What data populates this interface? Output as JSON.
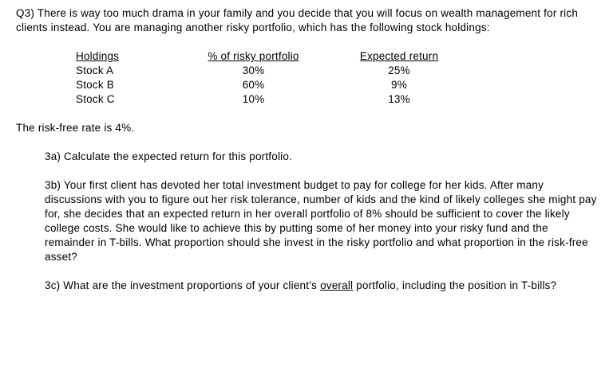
{
  "intro": "Q3) There is way too much drama in your family and you decide that you will focus on wealth management for rich clients instead. You are managing another risky portfolio, which has the following stock holdings:",
  "table": {
    "headers": [
      "Holdings",
      "% of risky portfolio",
      "Expected return"
    ],
    "rows": [
      [
        "Stock A",
        "30%",
        "25%"
      ],
      [
        "Stock B",
        "60%",
        "9%"
      ],
      [
        "Stock C",
        "10%",
        "13%"
      ]
    ]
  },
  "risk_free": "The risk-free rate is 4%.",
  "q3a": "3a) Calculate the expected return for this portfolio.",
  "q3b": "3b) Your first client has devoted her total investment budget to pay for college for her kids. After many discussions with you to figure out her risk tolerance, number of kids and the kind of likely colleges she might pay for, she decides that an expected return in her overall portfolio of 8% should be sufficient to cover the likely college costs. She would like to achieve this by putting some of her money into your risky fund and the remainder in T-bills. What proportion should she invest in the risky portfolio and what proportion in the risk-free asset?",
  "q3c": {
    "part1": "3c) What are the investment proportions of your client’s ",
    "underlined": "overall",
    "part2": " portfolio, including the position in T-bills?"
  }
}
